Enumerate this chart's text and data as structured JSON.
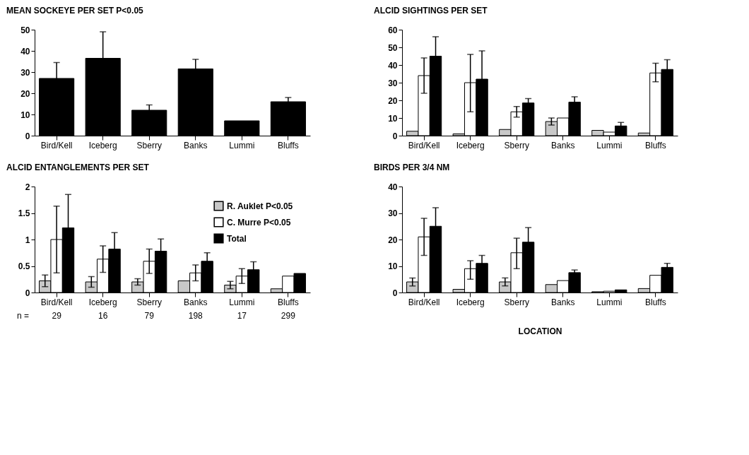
{
  "chart_data": [
    {
      "type": "bar",
      "title": "MEAN SOCKEYE PER SET P<0.05",
      "categories": [
        "Bird/Kell",
        "Iceberg",
        "Sberry",
        "Banks",
        "Lummi",
        "Bluffs"
      ],
      "values": [
        27,
        36.5,
        12,
        31.5,
        7,
        16
      ],
      "errors": [
        7.5,
        12.5,
        2.5,
        4.5,
        null,
        2
      ],
      "color": "#000000",
      "ylim": [
        0,
        50
      ],
      "yticks": [
        0,
        10,
        20,
        30,
        40,
        50
      ],
      "grid": false
    },
    {
      "type": "bar",
      "title": "ALCID SIGHTINGS PER SET",
      "categories": [
        "Bird/Kell",
        "Iceberg",
        "Sberry",
        "Banks",
        "Lummi",
        "Bluffs"
      ],
      "series": [
        {
          "color": "#c8c8c8",
          "values": [
            2.5,
            1,
            3.5,
            8,
            3,
            1.5
          ],
          "errors": [
            null,
            null,
            null,
            2,
            null,
            null
          ]
        },
        {
          "color": "#ffffff",
          "values": [
            34,
            30,
            13.5,
            10,
            2,
            35.5
          ],
          "errors": [
            [
              24,
              44
            ],
            [
              13.5,
              46
            ],
            [
              10.5,
              16.5
            ],
            null,
            null,
            [
              30.5,
              41
            ]
          ]
        },
        {
          "color": "#000000",
          "values": [
            45,
            32,
            18.5,
            19,
            5.5,
            37.5
          ],
          "errors": [
            11,
            16,
            2.5,
            3,
            2,
            5.5
          ]
        }
      ],
      "ylim": [
        0,
        60
      ],
      "yticks": [
        0,
        10,
        20,
        30,
        40,
        50,
        60
      ],
      "grid": false
    },
    {
      "type": "bar",
      "title": "ALCID ENTANGLEMENTS PER SET",
      "categories": [
        "Bird/Kell",
        "Iceberg",
        "Sberry",
        "Banks",
        "Lummi",
        "Bluffs"
      ],
      "series": [
        {
          "name": "R. Auklet  P<0.05",
          "color": "#c8c8c8",
          "values": [
            0.22,
            0.2,
            0.2,
            0.22,
            0.14,
            0.07
          ],
          "errors": [
            0.11,
            0.1,
            0.06,
            null,
            0.07,
            null
          ]
        },
        {
          "name": "C. Murre P<0.05",
          "color": "#ffffff",
          "values": [
            1.0,
            0.63,
            0.59,
            0.37,
            0.31,
            0.31
          ],
          "errors": [
            [
              0.37,
              1.63
            ],
            [
              0.38,
              0.88
            ],
            [
              0.36,
              0.82
            ],
            [
              0.22,
              0.52
            ],
            [
              0.17,
              0.45
            ],
            null
          ]
        },
        {
          "name": "Total",
          "color": "#000000",
          "values": [
            1.22,
            0.82,
            0.78,
            0.59,
            0.43,
            0.36
          ],
          "errors": [
            0.63,
            0.31,
            0.23,
            0.16,
            0.15,
            null
          ]
        }
      ],
      "ylim": [
        0,
        2
      ],
      "yticks": [
        0,
        0.5,
        1,
        1.5,
        2
      ],
      "grid": false,
      "legend": "top right",
      "annotations": [
        "n =",
        "29",
        "16",
        "79",
        "198",
        "17",
        "299"
      ]
    },
    {
      "type": "bar",
      "title": "BIRDS PER 3/4 NM",
      "xlabel": "LOCATION",
      "categories": [
        "Bird/Kell",
        "Iceberg",
        "Sberry",
        "Banks",
        "Lummi",
        "Bluffs"
      ],
      "series": [
        {
          "color": "#c8c8c8",
          "values": [
            4,
            1.2,
            4,
            3,
            0.3,
            1.5
          ],
          "errors": [
            1.5,
            null,
            1.5,
            null,
            null,
            null
          ]
        },
        {
          "color": "#ffffff",
          "values": [
            21,
            9,
            15,
            4.5,
            0.5,
            6.5
          ],
          "errors": [
            [
              14,
              28
            ],
            [
              5,
              12
            ],
            [
              9,
              20.5
            ],
            null,
            null,
            null
          ]
        },
        {
          "color": "#000000",
          "values": [
            25,
            11,
            19,
            7.5,
            1,
            9.5
          ],
          "errors": [
            7,
            3,
            5.5,
            1,
            null,
            1.5
          ]
        }
      ],
      "ylim": [
        0,
        40
      ],
      "yticks": [
        0,
        10,
        20,
        30,
        40
      ],
      "grid": false
    }
  ]
}
